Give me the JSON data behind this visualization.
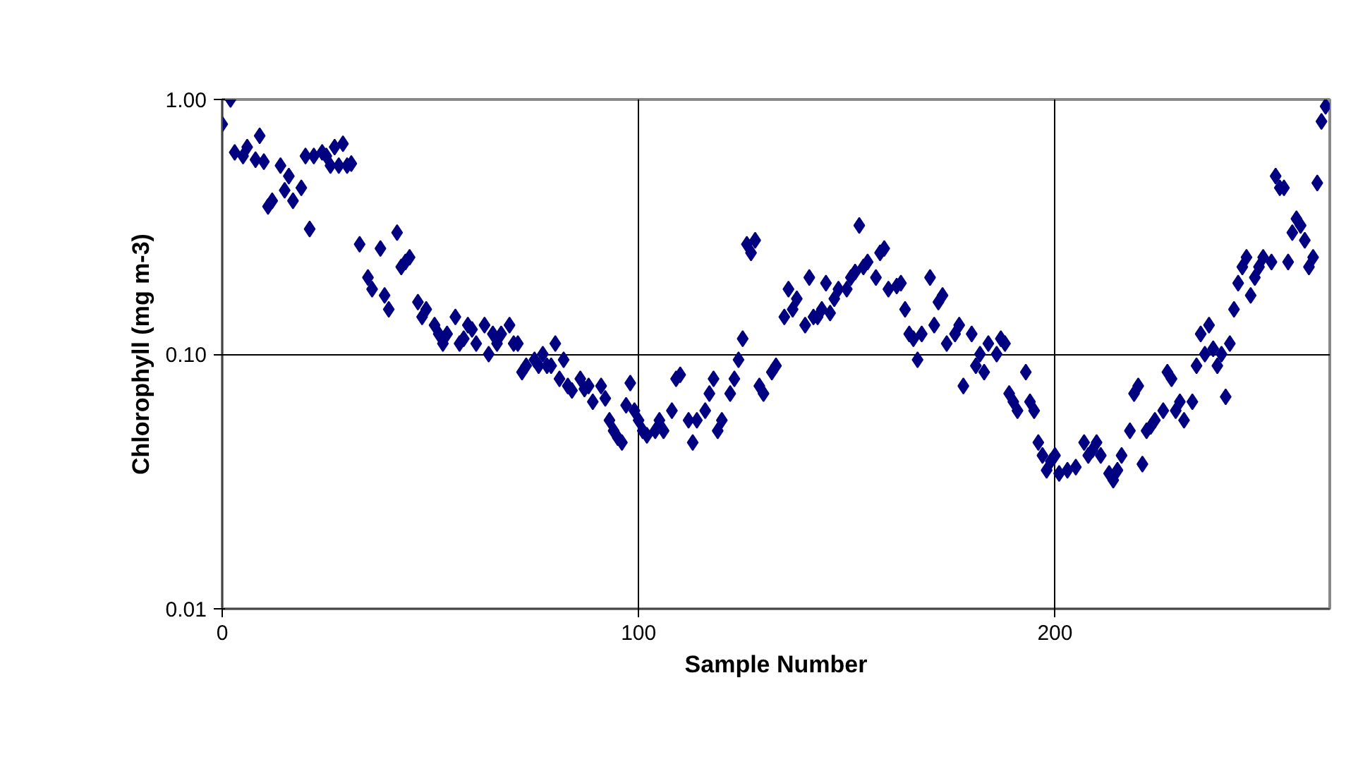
{
  "chart_data": {
    "type": "scatter",
    "xlabel": "Sample Number",
    "ylabel": "Chlorophyll (mg m-3)",
    "log": "y",
    "grid": true,
    "marker": "diamond",
    "xlim": [
      0,
      266
    ],
    "xticks": [
      0,
      100,
      200
    ],
    "ylim": [
      0.01,
      1
    ],
    "yticks": [
      {
        "value": 0.01,
        "label": "0.01"
      },
      {
        "value": 0.1,
        "label": "0.10"
      },
      {
        "value": 1,
        "label": "1.00"
      }
    ],
    "series": [
      {
        "color": "#000080",
        "x": [
          0,
          2,
          3,
          5,
          6,
          8,
          9,
          10,
          11,
          12,
          14,
          15,
          16,
          17,
          19,
          20,
          21,
          22,
          24,
          25,
          26,
          27,
          28,
          29,
          30,
          31,
          33,
          35,
          36,
          38,
          39,
          40,
          42,
          43,
          44,
          45,
          47,
          48,
          49,
          51,
          52,
          53,
          54,
          56,
          57,
          58,
          59,
          60,
          61,
          63,
          64,
          65,
          66,
          67,
          69,
          70,
          71,
          72,
          73,
          75,
          76,
          77,
          78,
          79,
          80,
          81,
          82,
          83,
          84,
          86,
          87,
          88,
          89,
          91,
          92,
          93,
          94,
          95,
          96,
          97,
          98,
          99,
          100,
          101,
          102,
          104,
          105,
          106,
          108,
          109,
          110,
          112,
          113,
          114,
          116,
          117,
          118,
          119,
          120,
          122,
          123,
          124,
          125,
          126,
          127,
          128,
          129,
          130,
          132,
          133,
          135,
          136,
          137,
          138,
          140,
          141,
          142,
          143,
          144,
          145,
          146,
          147,
          148,
          150,
          151,
          152,
          153,
          154,
          155,
          157,
          158,
          159,
          160,
          162,
          163,
          164,
          165,
          166,
          167,
          168,
          170,
          171,
          172,
          173,
          174,
          176,
          177,
          178,
          180,
          181,
          182,
          183,
          184,
          186,
          187,
          188,
          189,
          190,
          191,
          193,
          194,
          195,
          196,
          197,
          198,
          199,
          200,
          201,
          203,
          205,
          207,
          208,
          209,
          210,
          211,
          213,
          214,
          215,
          216,
          218,
          219,
          220,
          221,
          222,
          223,
          224,
          226,
          227,
          228,
          229,
          230,
          231,
          233,
          234,
          235,
          236,
          237,
          238,
          239,
          240,
          241,
          242,
          243,
          244,
          245,
          246,
          247,
          248,
          249,
          250,
          252,
          253,
          254,
          255,
          256,
          257,
          258,
          259,
          260,
          261,
          262,
          263,
          264,
          265
        ],
        "values": [
          0.8,
          1.0,
          0.62,
          0.6,
          0.65,
          0.58,
          0.72,
          0.57,
          0.38,
          0.4,
          0.55,
          0.44,
          0.5,
          0.4,
          0.45,
          0.6,
          0.31,
          0.6,
          0.62,
          0.6,
          0.55,
          0.65,
          0.55,
          0.67,
          0.55,
          0.56,
          0.27,
          0.2,
          0.18,
          0.26,
          0.17,
          0.15,
          0.3,
          0.22,
          0.23,
          0.24,
          0.16,
          0.14,
          0.15,
          0.13,
          0.12,
          0.11,
          0.12,
          0.14,
          0.11,
          0.115,
          0.13,
          0.125,
          0.11,
          0.13,
          0.1,
          0.12,
          0.11,
          0.12,
          0.13,
          0.11,
          0.11,
          0.085,
          0.09,
          0.095,
          0.09,
          0.1,
          0.09,
          0.09,
          0.11,
          0.08,
          0.095,
          0.075,
          0.072,
          0.08,
          0.073,
          0.075,
          0.065,
          0.075,
          0.067,
          0.055,
          0.05,
          0.047,
          0.045,
          0.063,
          0.077,
          0.06,
          0.055,
          0.05,
          0.048,
          0.05,
          0.055,
          0.05,
          0.06,
          0.08,
          0.083,
          0.055,
          0.045,
          0.055,
          0.06,
          0.07,
          0.08,
          0.05,
          0.055,
          0.07,
          0.08,
          0.095,
          0.115,
          0.27,
          0.25,
          0.28,
          0.075,
          0.07,
          0.085,
          0.09,
          0.14,
          0.18,
          0.15,
          0.165,
          0.13,
          0.2,
          0.14,
          0.14,
          0.15,
          0.19,
          0.145,
          0.165,
          0.18,
          0.18,
          0.2,
          0.21,
          0.32,
          0.22,
          0.23,
          0.2,
          0.25,
          0.26,
          0.18,
          0.185,
          0.19,
          0.15,
          0.12,
          0.115,
          0.095,
          0.12,
          0.2,
          0.13,
          0.16,
          0.17,
          0.11,
          0.12,
          0.13,
          0.075,
          0.12,
          0.09,
          0.1,
          0.085,
          0.11,
          0.1,
          0.115,
          0.11,
          0.07,
          0.065,
          0.06,
          0.085,
          0.065,
          0.06,
          0.045,
          0.04,
          0.035,
          0.038,
          0.04,
          0.034,
          0.035,
          0.036,
          0.045,
          0.04,
          0.042,
          0.045,
          0.04,
          0.034,
          0.032,
          0.035,
          0.04,
          0.05,
          0.07,
          0.075,
          0.037,
          0.05,
          0.052,
          0.055,
          0.06,
          0.085,
          0.08,
          0.06,
          0.065,
          0.055,
          0.065,
          0.09,
          0.12,
          0.1,
          0.13,
          0.105,
          0.09,
          0.1,
          0.068,
          0.11,
          0.15,
          0.19,
          0.22,
          0.24,
          0.17,
          0.2,
          0.22,
          0.24,
          0.23,
          0.5,
          0.45,
          0.45,
          0.23,
          0.3,
          0.34,
          0.32,
          0.28,
          0.22,
          0.24,
          0.47,
          0.82,
          0.94
        ]
      }
    ]
  }
}
